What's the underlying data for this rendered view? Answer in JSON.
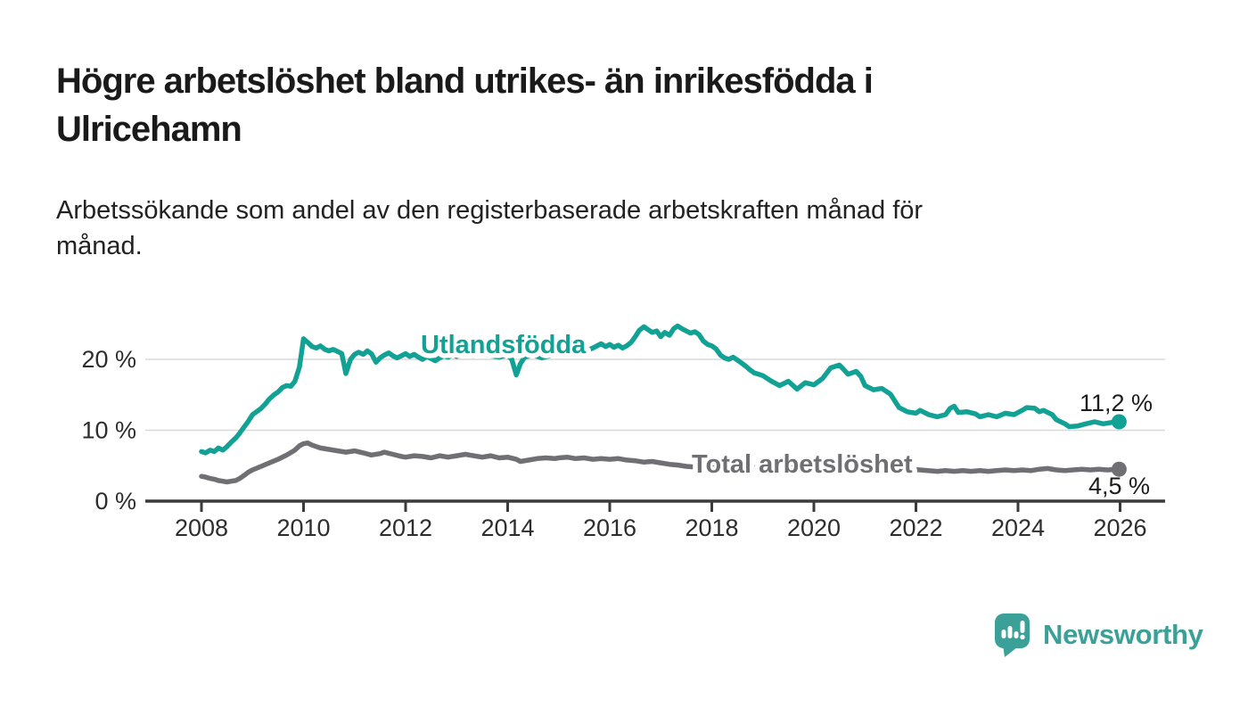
{
  "header": {
    "title_lines": [
      "Högre arbetslöshet bland utrikes- än inrikesfödda i",
      "Ulricehamn"
    ],
    "subtitle_lines": [
      "Arbetssökande som andel av den registerbaserade arbetskraften månad för",
      "månad."
    ]
  },
  "chart_data": {
    "type": "line",
    "title": "Högre arbetslöshet bland utrikes- än inrikesfödda i Ulricehamn",
    "subtitle": "Arbetssökande som andel av den registerbaserade arbetskraften månad för månad.",
    "xlabel": "",
    "ylabel": "",
    "x_ticks": [
      2008,
      2010,
      2012,
      2014,
      2016,
      2018,
      2020,
      2022,
      2024,
      2026
    ],
    "y_ticks": [
      0,
      10,
      20
    ],
    "y_unit": " %",
    "ylim": [
      0,
      26
    ],
    "xlim": [
      2006.9,
      2026.9
    ],
    "grid": "horizontal",
    "legend_position": "inline-labels",
    "series": [
      {
        "name": "Utlandsfödda",
        "color": "#12A195",
        "end_label": "11,2 %",
        "end_value": 11.2,
        "points": [
          [
            2008.0,
            7.0
          ],
          [
            2008.08,
            6.8
          ],
          [
            2008.17,
            7.2
          ],
          [
            2008.25,
            7.0
          ],
          [
            2008.33,
            7.5
          ],
          [
            2008.42,
            7.2
          ],
          [
            2008.5,
            7.7
          ],
          [
            2008.58,
            8.3
          ],
          [
            2008.67,
            8.9
          ],
          [
            2008.75,
            9.6
          ],
          [
            2008.83,
            10.4
          ],
          [
            2008.92,
            11.3
          ],
          [
            2009.0,
            12.2
          ],
          [
            2009.08,
            12.6
          ],
          [
            2009.17,
            13.1
          ],
          [
            2009.25,
            13.7
          ],
          [
            2009.33,
            14.4
          ],
          [
            2009.42,
            15.0
          ],
          [
            2009.5,
            15.4
          ],
          [
            2009.58,
            16.0
          ],
          [
            2009.67,
            16.3
          ],
          [
            2009.75,
            16.2
          ],
          [
            2009.83,
            16.9
          ],
          [
            2009.92,
            18.9
          ],
          [
            2010.0,
            22.9
          ],
          [
            2010.08,
            22.4
          ],
          [
            2010.17,
            21.8
          ],
          [
            2010.25,
            21.6
          ],
          [
            2010.33,
            21.9
          ],
          [
            2010.42,
            21.4
          ],
          [
            2010.5,
            21.2
          ],
          [
            2010.58,
            21.4
          ],
          [
            2010.67,
            21.1
          ],
          [
            2010.75,
            20.8
          ],
          [
            2010.83,
            18.0
          ],
          [
            2010.92,
            20.0
          ],
          [
            2011.0,
            20.7
          ],
          [
            2011.08,
            21.0
          ],
          [
            2011.17,
            20.7
          ],
          [
            2011.25,
            21.2
          ],
          [
            2011.33,
            20.8
          ],
          [
            2011.42,
            19.6
          ],
          [
            2011.5,
            20.2
          ],
          [
            2011.58,
            20.6
          ],
          [
            2011.67,
            20.9
          ],
          [
            2011.75,
            20.5
          ],
          [
            2011.83,
            20.2
          ],
          [
            2011.92,
            20.5
          ],
          [
            2012.0,
            20.8
          ],
          [
            2012.08,
            20.4
          ],
          [
            2012.17,
            20.7
          ],
          [
            2012.25,
            20.3
          ],
          [
            2012.33,
            20.0
          ],
          [
            2012.42,
            20.4
          ],
          [
            2012.5,
            20.1
          ],
          [
            2012.58,
            19.8
          ],
          [
            2012.67,
            20.2
          ],
          [
            2012.75,
            20.5
          ],
          [
            2012.83,
            20.3
          ],
          [
            2012.92,
            20.6
          ],
          [
            2013.0,
            20.4
          ],
          [
            2013.17,
            20.7
          ],
          [
            2013.33,
            20.5
          ],
          [
            2013.5,
            20.8
          ],
          [
            2013.67,
            20.5
          ],
          [
            2013.83,
            20.3
          ],
          [
            2014.0,
            20.6
          ],
          [
            2014.08,
            20.0
          ],
          [
            2014.17,
            17.8
          ],
          [
            2014.25,
            19.4
          ],
          [
            2014.33,
            20.3
          ],
          [
            2014.5,
            20.6
          ],
          [
            2014.67,
            20.2
          ],
          [
            2014.83,
            20.5
          ],
          [
            2015.0,
            20.7
          ],
          [
            2015.17,
            21.0
          ],
          [
            2015.33,
            20.7
          ],
          [
            2015.5,
            21.1
          ],
          [
            2015.67,
            21.6
          ],
          [
            2015.83,
            22.2
          ],
          [
            2015.92,
            21.8
          ],
          [
            2016.0,
            22.1
          ],
          [
            2016.08,
            21.7
          ],
          [
            2016.17,
            22.0
          ],
          [
            2016.25,
            21.6
          ],
          [
            2016.33,
            21.9
          ],
          [
            2016.42,
            22.4
          ],
          [
            2016.5,
            23.2
          ],
          [
            2016.58,
            24.1
          ],
          [
            2016.67,
            24.6
          ],
          [
            2016.75,
            24.2
          ],
          [
            2016.83,
            23.8
          ],
          [
            2016.92,
            24.0
          ],
          [
            2017.0,
            23.2
          ],
          [
            2017.08,
            23.8
          ],
          [
            2017.17,
            23.4
          ],
          [
            2017.25,
            24.3
          ],
          [
            2017.33,
            24.7
          ],
          [
            2017.42,
            24.3
          ],
          [
            2017.5,
            24.0
          ],
          [
            2017.58,
            23.7
          ],
          [
            2017.67,
            23.9
          ],
          [
            2017.75,
            23.5
          ],
          [
            2017.83,
            22.6
          ],
          [
            2017.92,
            22.1
          ],
          [
            2018.0,
            21.9
          ],
          [
            2018.08,
            21.5
          ],
          [
            2018.17,
            20.6
          ],
          [
            2018.25,
            20.2
          ],
          [
            2018.33,
            20.0
          ],
          [
            2018.42,
            20.3
          ],
          [
            2018.5,
            19.9
          ],
          [
            2018.58,
            19.5
          ],
          [
            2018.67,
            19.0
          ],
          [
            2018.75,
            18.5
          ],
          [
            2018.83,
            18.1
          ],
          [
            2018.92,
            17.9
          ],
          [
            2019.0,
            17.7
          ],
          [
            2019.17,
            16.9
          ],
          [
            2019.33,
            16.3
          ],
          [
            2019.5,
            16.9
          ],
          [
            2019.67,
            15.8
          ],
          [
            2019.83,
            16.7
          ],
          [
            2020.0,
            16.4
          ],
          [
            2020.17,
            17.3
          ],
          [
            2020.33,
            18.8
          ],
          [
            2020.5,
            19.2
          ],
          [
            2020.58,
            18.6
          ],
          [
            2020.67,
            17.9
          ],
          [
            2020.83,
            18.3
          ],
          [
            2020.92,
            17.6
          ],
          [
            2021.0,
            16.3
          ],
          [
            2021.17,
            15.7
          ],
          [
            2021.33,
            15.9
          ],
          [
            2021.5,
            15.1
          ],
          [
            2021.67,
            13.2
          ],
          [
            2021.83,
            12.6
          ],
          [
            2022.0,
            12.4
          ],
          [
            2022.08,
            12.8
          ],
          [
            2022.25,
            12.2
          ],
          [
            2022.42,
            11.9
          ],
          [
            2022.58,
            12.2
          ],
          [
            2022.67,
            13.1
          ],
          [
            2022.75,
            13.4
          ],
          [
            2022.83,
            12.5
          ],
          [
            2023.0,
            12.6
          ],
          [
            2023.17,
            12.3
          ],
          [
            2023.25,
            11.9
          ],
          [
            2023.42,
            12.2
          ],
          [
            2023.58,
            11.9
          ],
          [
            2023.75,
            12.4
          ],
          [
            2023.92,
            12.2
          ],
          [
            2024.08,
            12.8
          ],
          [
            2024.17,
            13.2
          ],
          [
            2024.33,
            13.1
          ],
          [
            2024.42,
            12.6
          ],
          [
            2024.5,
            12.8
          ],
          [
            2024.67,
            12.2
          ],
          [
            2024.75,
            11.5
          ],
          [
            2024.92,
            10.9
          ],
          [
            2025.0,
            10.5
          ],
          [
            2025.17,
            10.6
          ],
          [
            2025.33,
            10.9
          ],
          [
            2025.5,
            11.2
          ],
          [
            2025.67,
            10.9
          ],
          [
            2025.83,
            11.1
          ],
          [
            2025.98,
            11.2
          ]
        ]
      },
      {
        "name": "Total arbetslöshet",
        "color": "#6F6F74",
        "end_label": "4,5 %",
        "end_value": 4.5,
        "points": [
          [
            2008.0,
            3.5
          ],
          [
            2008.08,
            3.4
          ],
          [
            2008.17,
            3.2
          ],
          [
            2008.25,
            3.1
          ],
          [
            2008.33,
            2.9
          ],
          [
            2008.42,
            2.8
          ],
          [
            2008.5,
            2.7
          ],
          [
            2008.58,
            2.8
          ],
          [
            2008.67,
            2.9
          ],
          [
            2008.75,
            3.2
          ],
          [
            2008.83,
            3.6
          ],
          [
            2008.92,
            4.1
          ],
          [
            2009.0,
            4.4
          ],
          [
            2009.17,
            4.9
          ],
          [
            2009.33,
            5.4
          ],
          [
            2009.5,
            5.9
          ],
          [
            2009.67,
            6.5
          ],
          [
            2009.83,
            7.2
          ],
          [
            2009.92,
            7.8
          ],
          [
            2010.0,
            8.1
          ],
          [
            2010.08,
            8.2
          ],
          [
            2010.17,
            7.9
          ],
          [
            2010.25,
            7.7
          ],
          [
            2010.33,
            7.5
          ],
          [
            2010.5,
            7.3
          ],
          [
            2010.67,
            7.1
          ],
          [
            2010.83,
            6.9
          ],
          [
            2011.0,
            7.1
          ],
          [
            2011.17,
            6.8
          ],
          [
            2011.33,
            6.5
          ],
          [
            2011.5,
            6.7
          ],
          [
            2011.58,
            6.9
          ],
          [
            2011.75,
            6.6
          ],
          [
            2011.92,
            6.3
          ],
          [
            2012.0,
            6.2
          ],
          [
            2012.17,
            6.4
          ],
          [
            2012.33,
            6.3
          ],
          [
            2012.5,
            6.1
          ],
          [
            2012.67,
            6.4
          ],
          [
            2012.83,
            6.2
          ],
          [
            2013.0,
            6.4
          ],
          [
            2013.17,
            6.6
          ],
          [
            2013.33,
            6.4
          ],
          [
            2013.5,
            6.2
          ],
          [
            2013.67,
            6.4
          ],
          [
            2013.83,
            6.1
          ],
          [
            2014.0,
            6.2
          ],
          [
            2014.17,
            5.9
          ],
          [
            2014.25,
            5.6
          ],
          [
            2014.42,
            5.8
          ],
          [
            2014.58,
            6.0
          ],
          [
            2014.75,
            6.1
          ],
          [
            2014.92,
            6.0
          ],
          [
            2015.0,
            6.1
          ],
          [
            2015.17,
            6.2
          ],
          [
            2015.33,
            6.0
          ],
          [
            2015.5,
            6.1
          ],
          [
            2015.67,
            5.9
          ],
          [
            2015.83,
            6.0
          ],
          [
            2016.0,
            5.9
          ],
          [
            2016.17,
            6.0
          ],
          [
            2016.33,
            5.8
          ],
          [
            2016.5,
            5.7
          ],
          [
            2016.67,
            5.5
          ],
          [
            2016.83,
            5.6
          ],
          [
            2017.0,
            5.4
          ],
          [
            2017.17,
            5.2
          ],
          [
            2017.33,
            5.1
          ],
          [
            2017.5,
            4.9
          ],
          [
            2017.67,
            4.8
          ],
          [
            2018.0,
            4.9
          ],
          [
            2018.5,
            4.8
          ],
          [
            2019.0,
            4.7
          ],
          [
            2019.5,
            4.6
          ],
          [
            2020.0,
            5.1
          ],
          [
            2020.42,
            5.6
          ],
          [
            2020.83,
            5.3
          ],
          [
            2021.25,
            4.9
          ],
          [
            2021.75,
            4.6
          ],
          [
            2022.08,
            4.4
          ],
          [
            2022.42,
            4.2
          ],
          [
            2022.58,
            4.3
          ],
          [
            2022.75,
            4.2
          ],
          [
            2022.92,
            4.3
          ],
          [
            2023.08,
            4.2
          ],
          [
            2023.25,
            4.3
          ],
          [
            2023.42,
            4.2
          ],
          [
            2023.58,
            4.3
          ],
          [
            2023.75,
            4.4
          ],
          [
            2023.92,
            4.3
          ],
          [
            2024.08,
            4.4
          ],
          [
            2024.25,
            4.3
          ],
          [
            2024.42,
            4.5
          ],
          [
            2024.58,
            4.6
          ],
          [
            2024.75,
            4.4
          ],
          [
            2024.92,
            4.3
          ],
          [
            2025.08,
            4.4
          ],
          [
            2025.25,
            4.5
          ],
          [
            2025.42,
            4.4
          ],
          [
            2025.58,
            4.5
          ],
          [
            2025.75,
            4.4
          ],
          [
            2025.98,
            4.5
          ]
        ]
      }
    ]
  },
  "footer": {
    "brand": "Newsworthy",
    "brand_color": "#3BA097",
    "logo_icon": "newsworthy-speech-bubble-chart-icon"
  }
}
